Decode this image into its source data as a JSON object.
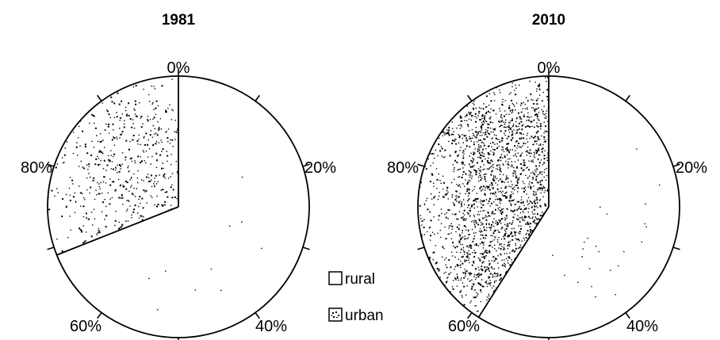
{
  "chart_data": [
    {
      "type": "pie",
      "title": "1981",
      "categories": [
        "rural",
        "urban"
      ],
      "values": [
        69,
        31
      ],
      "unit": "%",
      "tick_labels": [
        "0%",
        "20%",
        "40%",
        "60%",
        "80%"
      ]
    },
    {
      "type": "pie",
      "title": "2010",
      "categories": [
        "rural",
        "urban"
      ],
      "values": [
        59,
        41
      ],
      "unit": "%",
      "tick_labels": [
        "0%",
        "20%",
        "40%",
        "60%",
        "80%"
      ]
    }
  ],
  "legend": {
    "items": [
      {
        "label": "rural",
        "fill": "white"
      },
      {
        "label": "urban",
        "fill": "stippled-black"
      }
    ]
  },
  "colors": {
    "rural": "#ffffff",
    "urban_dots": "#000000",
    "outline": "#000000"
  }
}
